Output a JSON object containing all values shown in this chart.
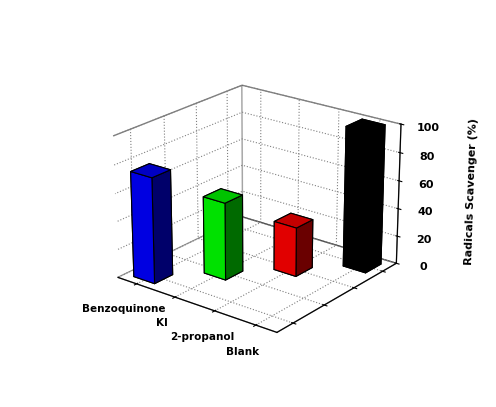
{
  "categories": [
    "Benzoquinone",
    "KI",
    "2-propanol",
    "Blank"
  ],
  "values": [
    75,
    55,
    35,
    100
  ],
  "colors": [
    "blue",
    "lime",
    "red",
    "black"
  ],
  "ylabel": "Radicals Scavenger (%)",
  "zlim": [
    0,
    100
  ],
  "zticks": [
    0,
    20,
    40,
    60,
    80,
    100
  ],
  "background_color": "white",
  "bar_width": 0.55,
  "bar_depth": 0.55,
  "elev": 22,
  "azim": -52
}
